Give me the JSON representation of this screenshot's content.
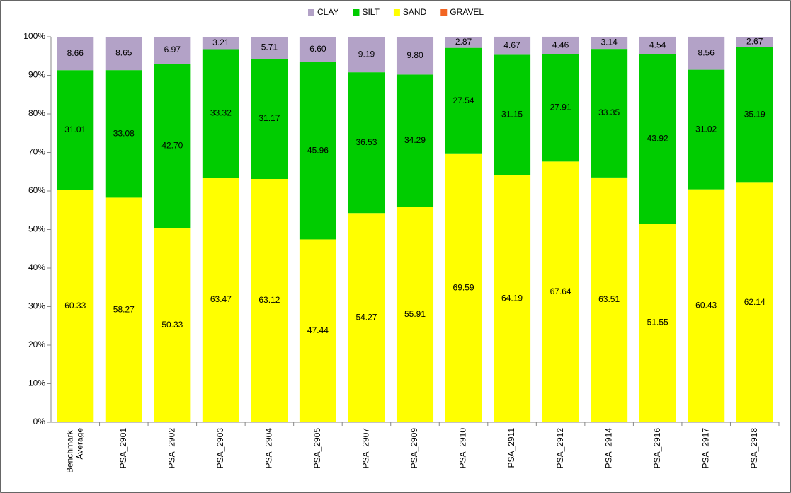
{
  "chart_data": {
    "type": "stacked_bar",
    "categories": [
      "Benchmark Average",
      "PSA_2901",
      "PSA_2902",
      "PSA_2903",
      "PSA_2904",
      "PSA_2905",
      "PSA_2907",
      "PSA_2909",
      "PSA_2910",
      "PSA_2911",
      "PSA_2912",
      "PSA_2914",
      "PSA_2916",
      "PSA_2917",
      "PSA_2918"
    ],
    "series": [
      {
        "name": "GRAVEL",
        "color": "#f26522",
        "values": [
          0,
          0,
          0,
          0,
          0,
          0,
          0,
          0,
          0,
          0,
          0,
          0,
          0,
          0,
          0
        ]
      },
      {
        "name": "SAND",
        "color": "#ffff00",
        "values": [
          60.33,
          58.27,
          50.33,
          63.47,
          63.12,
          47.44,
          54.27,
          55.91,
          69.59,
          64.19,
          67.64,
          63.51,
          51.55,
          60.43,
          62.14
        ],
        "value_labels": [
          "60.33",
          "58.27",
          "50.33",
          "63.47",
          "63.12",
          "47.44",
          "54.27",
          "55.91",
          "69.59",
          "64.19",
          "67.64",
          "63.51",
          "51.55",
          "60.43",
          "62.14"
        ]
      },
      {
        "name": "SILT",
        "color": "#00cc00",
        "values": [
          31.01,
          33.08,
          42.7,
          33.32,
          31.17,
          45.96,
          36.53,
          34.29,
          27.54,
          31.15,
          27.91,
          33.35,
          43.92,
          31.02,
          35.19
        ],
        "value_labels": [
          "31.01",
          "33.08",
          "42.70",
          "33.32",
          "31.17",
          "45.96",
          "36.53",
          "34.29",
          "27.54",
          "31.15",
          "27.91",
          "33.35",
          "43.92",
          "31.02",
          "35.19"
        ]
      },
      {
        "name": "CLAY",
        "color": "#b3a2c7",
        "values": [
          8.66,
          8.65,
          6.97,
          3.21,
          5.71,
          6.6,
          9.19,
          9.8,
          2.87,
          4.67,
          4.46,
          3.14,
          4.54,
          8.56,
          2.67
        ],
        "value_labels": [
          "8.66",
          "8.65",
          "6.97",
          "3.21",
          "5.71",
          "6.60",
          "9.19",
          "9.80",
          "2.87",
          "4.67",
          "4.46",
          "3.14",
          "4.54",
          "8.56",
          "2.67"
        ]
      }
    ],
    "legend_order": [
      3,
      2,
      1,
      0
    ],
    "ylim": [
      0,
      100
    ],
    "yticks": [
      {
        "value": 0,
        "label": "0%"
      },
      {
        "value": 10,
        "label": "10%"
      },
      {
        "value": 20,
        "label": "20%"
      },
      {
        "value": 30,
        "label": "30%"
      },
      {
        "value": 40,
        "label": "40%"
      },
      {
        "value": 50,
        "label": "50%"
      },
      {
        "value": 60,
        "label": "60%"
      },
      {
        "value": 70,
        "label": "70%"
      },
      {
        "value": 80,
        "label": "80%"
      },
      {
        "value": 90,
        "label": "90%"
      },
      {
        "value": 100,
        "label": "100%"
      }
    ]
  }
}
